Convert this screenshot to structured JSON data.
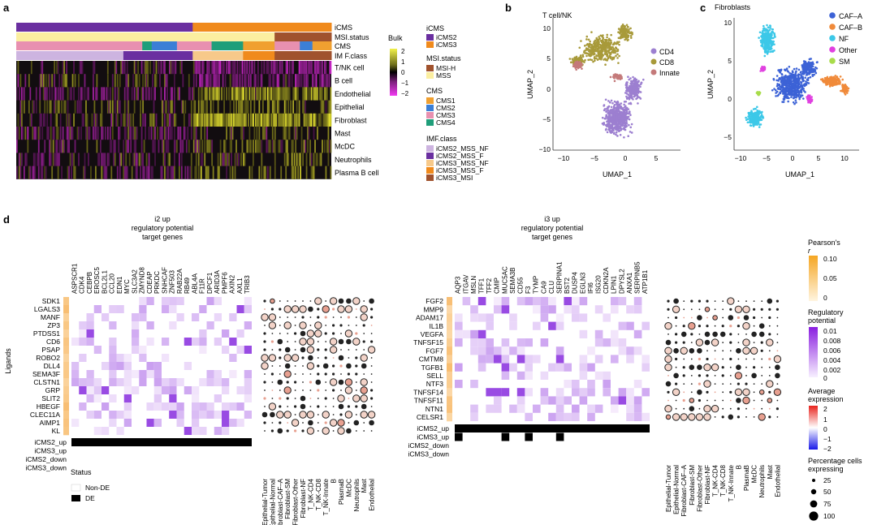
{
  "panels": {
    "a": "a",
    "b": "b",
    "c": "c",
    "d": "d"
  },
  "heatmap": {
    "annotation_rows": [
      "iCMS",
      "MSI.status",
      "CMS",
      "IM F.class"
    ],
    "cell_rows": [
      "T/NK cell",
      "B cell",
      "Endothelial",
      "Epithelial",
      "Fibroblast",
      "Mast",
      "McDC",
      "Neutrophils",
      "Plasma B cell"
    ],
    "bulk_label": "Bulk",
    "bulk_ticks": [
      "2",
      "1",
      "0",
      "−1",
      "−2"
    ],
    "legend": {
      "icms_title": "iCMS",
      "icms": [
        {
          "label": "iCMS2",
          "color": "#6a2fa0"
        },
        {
          "label": "iCMS3",
          "color": "#f08a1c"
        }
      ],
      "msi_title": "MSI.status",
      "msi": [
        {
          "label": "MSI-H",
          "color": "#a0522d"
        },
        {
          "label": "MSS",
          "color": "#fbeea0"
        }
      ],
      "cms_title": "CMS",
      "cms": [
        {
          "label": "CMS1",
          "color": "#f0a030"
        },
        {
          "label": "CMS2",
          "color": "#3b7fd6"
        },
        {
          "label": "CMS3",
          "color": "#e890b0"
        },
        {
          "label": "CMS4",
          "color": "#1f9e7a"
        }
      ],
      "imf_title": "IMF.class",
      "imf": [
        {
          "label": "iCMS2_MSS_NF",
          "color": "#cdb4e0"
        },
        {
          "label": "iCMS2_MSS_F",
          "color": "#6a2fa0"
        },
        {
          "label": "iCMS3_MSS_NF",
          "color": "#f7c98a"
        },
        {
          "label": "iCMS3_MSS_F",
          "color": "#f08a1c"
        },
        {
          "label": "iCMS3_MSI",
          "color": "#a0522d"
        }
      ]
    }
  },
  "umap_b": {
    "title": "T cell/NK",
    "xlabel": "UMAP_1",
    "ylabel": "UMAP_2",
    "xticks": [
      "−10",
      "−5",
      "0",
      "5"
    ],
    "yticks": [
      "10",
      "5",
      "0",
      "−5",
      "−10"
    ],
    "legend": [
      {
        "label": "CD4",
        "color": "#9c7fd0"
      },
      {
        "label": "CD8",
        "color": "#a89a3a"
      },
      {
        "label": "Innate",
        "color": "#c47a7a"
      }
    ]
  },
  "umap_c": {
    "title": "Fibroblasts",
    "xlabel": "UMAP_1",
    "ylabel": "UMAP_2",
    "xticks": [
      "−10",
      "−5",
      "0",
      "5",
      "10"
    ],
    "yticks": [
      "10",
      "5",
      "0",
      "−5"
    ],
    "legend": [
      {
        "label": "CAF–A",
        "color": "#3c62d6"
      },
      {
        "label": "CAF–B",
        "color": "#f08a3a"
      },
      {
        "label": "NF",
        "color": "#3cc8e8"
      },
      {
        "label": "Other",
        "color": "#e040e0"
      },
      {
        "label": "SM",
        "color": "#a8dc4a"
      }
    ]
  },
  "panel_d": {
    "left_title": [
      "i2 up",
      "regulatory potential",
      "target genes"
    ],
    "right_title": [
      "i3 up",
      "regulatory potential",
      "target genes"
    ],
    "ligands_label": "Ligands",
    "left_targets": [
      "ASPSCR1",
      "CDK4",
      "CEBPB",
      "EROSC5",
      "BCL2L1",
      "CCL20",
      "EDN1",
      "MYC",
      "SLC3A2",
      "ZMYND8",
      "CDEAP",
      "PRKDC",
      "SNHCAF",
      "ZNF503",
      "RAB22A",
      "RB49",
      "ABL4A",
      "F11R",
      "DPCF1",
      "ARID3A",
      "PMPF6",
      "AXIN2",
      "AXL1",
      "TRIB3"
    ],
    "left_ligands": [
      "SDK1",
      "LGALS3",
      "MANF",
      "ZP3",
      "PTDSS1",
      "CD6",
      "PSAP",
      "ROBO2",
      "DLL4",
      "SEMA3F",
      "CLSTN1",
      "GRP",
      "SLIT2",
      "HBEGF",
      "CLEC11A",
      "AIMP1",
      "KL"
    ],
    "right_targets": [
      "AQP3",
      "ITGAV",
      "MSLN",
      "TFF1",
      "TFF2",
      "CMIP",
      "MUC5AC",
      "SEMA3B",
      "CD55",
      "F3",
      "TYMP",
      "CA9",
      "CLU",
      "SERPINA1",
      "BST2",
      "DUSP4",
      "EGLN3",
      "IFI6",
      "ISG20",
      "CDKN2A",
      "LPIN1",
      "DPYSL2",
      "ANXA1",
      "SERPINB5",
      "ATP1B1"
    ],
    "right_ligands": [
      "FGF2",
      "MMP9",
      "ADAM17",
      "IL1B",
      "VEGFA",
      "TNFSF15",
      "FGF7",
      "CMTM8",
      "TGFB1",
      "SELL",
      "NTF3",
      "TNFSF14",
      "TNFSF11",
      "NTN1",
      "CELSR1"
    ],
    "status_rows": [
      "iCMS2_up",
      "iCMS3_up",
      "iCMS2_down",
      "iCMS3_down"
    ],
    "cell_types": [
      "Epithelial-Tumor",
      "Epithelial-Normal",
      "Fibroblast-CAF–A",
      "Fibroblast-SM",
      "Fibroblast-Other",
      "Fibroblast-NF",
      "T_NK-CD4",
      "T_NK-CD8",
      "T_NK-Innate",
      "B",
      "PlasmaB",
      "McDC",
      "Neutrophils",
      "Mast",
      "Endothelial"
    ],
    "status_title": "Status",
    "status_legend": [
      {
        "label": "Non-DE",
        "color": "#ffffff"
      },
      {
        "label": "DE",
        "color": "#000000"
      }
    ],
    "pearson_title": "Pearson's",
    "pearson_sub": "r",
    "pearson_ticks": [
      "0.10",
      "0.05",
      "0"
    ],
    "regpot_title": [
      "Regulatory",
      "potential"
    ],
    "regpot_ticks": [
      "0.01",
      "0.008",
      "0.006",
      "0.004",
      "0.002",
      "0"
    ],
    "avgexpr_title": [
      "Average",
      "expression"
    ],
    "avgexpr_ticks": [
      "2",
      "1",
      "0",
      "−1",
      "−2"
    ],
    "pct_title": [
      "Percentage cells",
      "expressing"
    ],
    "pct_values": [
      "25",
      "50",
      "75",
      "100"
    ]
  }
}
